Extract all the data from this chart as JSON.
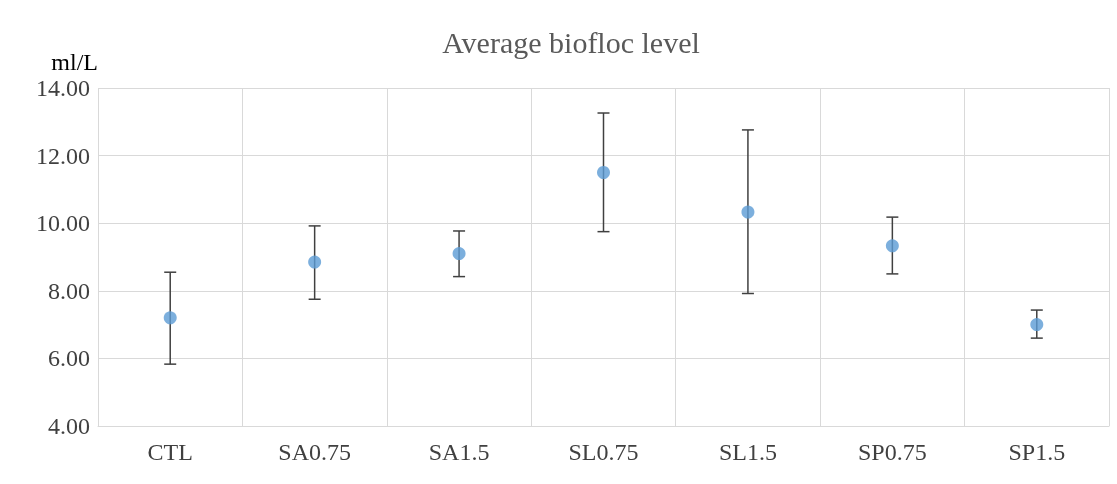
{
  "chart_data": {
    "type": "scatter",
    "title": "Average biofloc level",
    "ylabel": "ml/L",
    "categories": [
      "CTL",
      "SA0.75",
      "SA1.5",
      "SL0.75",
      "SL1.5",
      "SP0.75",
      "SP1.5"
    ],
    "series": [
      {
        "color": "#5b9bd5",
        "values": [
          7.2,
          8.85,
          9.1,
          11.5,
          10.33,
          9.33,
          7.0
        ],
        "errors": [
          [
            5.83,
            8.55
          ],
          [
            7.75,
            9.92
          ],
          [
            8.42,
            9.77
          ],
          [
            9.75,
            13.26
          ],
          [
            7.92,
            12.76
          ],
          [
            8.5,
            10.18
          ],
          [
            6.6,
            7.43
          ]
        ]
      }
    ],
    "ylim": [
      4,
      14
    ],
    "yticks": [
      {
        "value": 4,
        "label": "4.00"
      },
      {
        "value": 6,
        "label": "6.00"
      },
      {
        "value": 8,
        "label": "8.00"
      },
      {
        "value": 10,
        "label": "10.00"
      },
      {
        "value": 12,
        "label": "12.00"
      },
      {
        "value": 14,
        "label": "14.00"
      }
    ],
    "grid": true,
    "marker": "circle"
  }
}
